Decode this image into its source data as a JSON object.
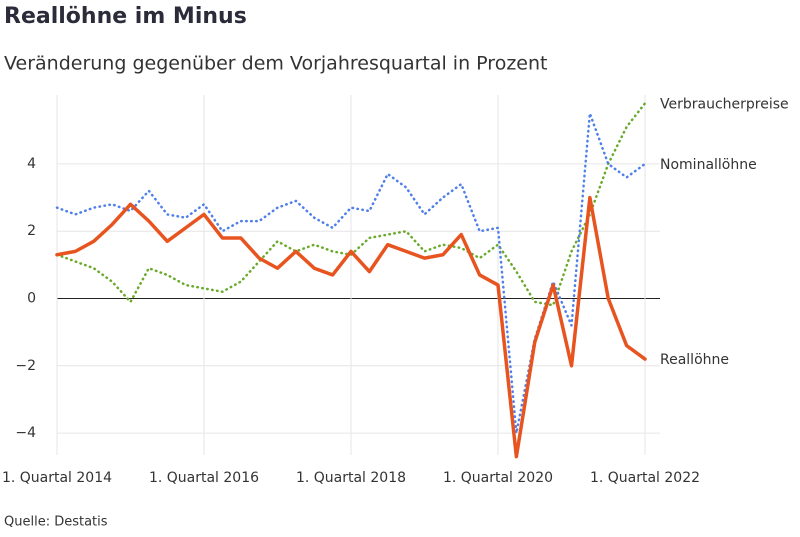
{
  "chart_data": {
    "type": "line",
    "title": "Reallöhne im Minus",
    "subtitle": "Veränderung gegenüber dem Vorjahresquartal in Prozent",
    "source": "Quelle: Destatis",
    "categories": [
      "1. Quartal 2014",
      null,
      null,
      null,
      null,
      null,
      null,
      null,
      "1. Quartal 2016",
      null,
      null,
      null,
      null,
      null,
      null,
      null,
      "1. Quartal 2018",
      null,
      null,
      null,
      null,
      null,
      null,
      null,
      "1. Quartal 2020",
      null,
      null,
      null,
      null,
      null,
      null,
      null,
      "1. Quartal 2022"
    ],
    "series": [
      {
        "name": "Verbraucherpreise",
        "color": "#6aaa2a",
        "style": "dotted",
        "values": [
          1.3,
          1.1,
          0.9,
          0.5,
          -0.1,
          0.9,
          0.7,
          0.4,
          0.3,
          0.2,
          0.5,
          1.1,
          1.7,
          1.4,
          1.6,
          1.4,
          1.3,
          1.8,
          1.9,
          2.0,
          1.4,
          1.6,
          1.5,
          1.2,
          1.6,
          0.8,
          -0.1,
          -0.2,
          1.4,
          2.5,
          4.0,
          5.1,
          5.8
        ]
      },
      {
        "name": "Nominallöhne",
        "color": "#4f7fe8",
        "style": "dotted",
        "values": [
          2.7,
          2.5,
          2.7,
          2.8,
          2.6,
          3.2,
          2.5,
          2.4,
          2.8,
          2.0,
          2.3,
          2.3,
          2.7,
          2.9,
          2.4,
          2.1,
          2.7,
          2.6,
          3.7,
          3.3,
          2.5,
          3.0,
          3.4,
          2.0,
          2.1,
          -4.0,
          -1.2,
          0.5,
          -0.8,
          5.5,
          4.0,
          3.6,
          4.0
        ]
      },
      {
        "name": "Reallöhne",
        "color": "#e8541f",
        "style": "solid",
        "values": [
          1.3,
          1.4,
          1.7,
          2.2,
          2.8,
          2.3,
          1.7,
          2.1,
          2.5,
          1.8,
          1.8,
          1.2,
          0.9,
          1.4,
          0.9,
          0.7,
          1.4,
          0.8,
          1.6,
          1.4,
          1.2,
          1.3,
          1.9,
          0.7,
          0.4,
          -4.7,
          -1.3,
          0.4,
          -2.0,
          3.0,
          0.0,
          -1.4,
          -1.8
        ]
      }
    ],
    "ylim": [
      -4.8,
      5.9
    ],
    "yticks": [
      {
        "value": -4,
        "label": "−4"
      },
      {
        "value": -2,
        "label": "−2"
      },
      0,
      2,
      4
    ],
    "grid": true
  }
}
